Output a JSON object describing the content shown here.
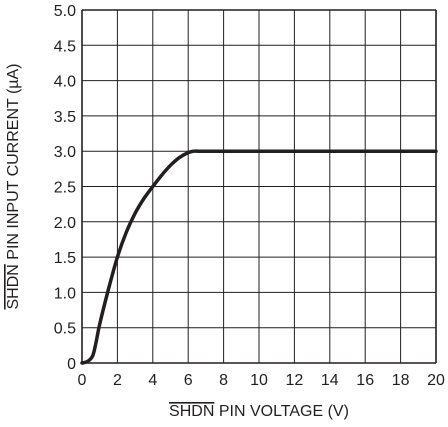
{
  "chart_data": {
    "type": "line",
    "title": "",
    "xlabel": {
      "overlined": "SHDN",
      "rest": " PIN VOLTAGE (V)"
    },
    "ylabel": {
      "overlined": "SHDN",
      "rest": " PIN INPUT CURRENT (µA)"
    },
    "xlim": [
      0,
      20
    ],
    "ylim": [
      0,
      5.0
    ],
    "x_ticks": [
      "0",
      "2",
      "4",
      "6",
      "8",
      "10",
      "12",
      "14",
      "16",
      "18",
      "20"
    ],
    "y_ticks": [
      "0",
      "0.5",
      "1.0",
      "1.5",
      "2.0",
      "2.5",
      "3.0",
      "3.5",
      "4.0",
      "4.5",
      "5.0"
    ],
    "grid": true,
    "series": [
      {
        "x": [
          0,
          0.3,
          0.6,
          0.8,
          1.0,
          1.5,
          2.0,
          2.5,
          3.0,
          3.5,
          4.0,
          4.5,
          5.0,
          5.5,
          6.0,
          6.3,
          6.6,
          7,
          8,
          10,
          12,
          14,
          16,
          18,
          20
        ],
        "y": [
          0,
          0.02,
          0.1,
          0.3,
          0.55,
          1.05,
          1.5,
          1.85,
          2.12,
          2.33,
          2.5,
          2.66,
          2.8,
          2.91,
          2.98,
          3.0,
          3.0,
          3.0,
          3.0,
          3.0,
          3.0,
          3.0,
          3.0,
          3.0,
          3.0
        ]
      }
    ],
    "colors": {
      "grid": "#231f20",
      "line": "#231f20",
      "text": "#231f20"
    }
  }
}
